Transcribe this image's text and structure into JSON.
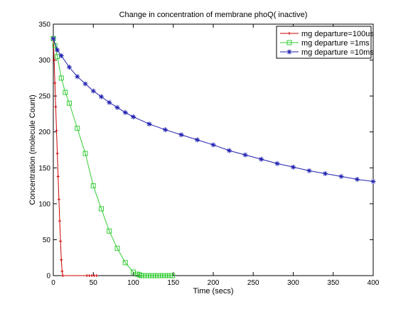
{
  "chart_data": {
    "type": "line",
    "title": "Change in concentration of membrane phoQ( inactive)",
    "xlabel": "Time (secs)",
    "ylabel": "Concentration (molecule Count)",
    "xlim": [
      0,
      400
    ],
    "ylim": [
      0,
      350
    ],
    "xticks": [
      0,
      50,
      100,
      150,
      200,
      250,
      300,
      350,
      400
    ],
    "yticks": [
      0,
      50,
      100,
      150,
      200,
      250,
      300,
      350
    ],
    "grid": false,
    "legend_position": "top-right",
    "series": [
      {
        "name": "mg departure=100us",
        "color": "#cc0000",
        "marker": "plus",
        "x": [
          0,
          1,
          2,
          3,
          4,
          5,
          6,
          7,
          8,
          9,
          10,
          11,
          12,
          42,
          45,
          48,
          51,
          54
        ],
        "y": [
          330,
          300,
          268,
          235,
          202,
          170,
          138,
          106,
          76,
          48,
          22,
          6,
          0,
          0,
          0,
          0,
          0,
          0
        ]
      },
      {
        "name": "mg departure =1ms",
        "color": "#33cc33",
        "marker": "square",
        "x": [
          0,
          2,
          5,
          10,
          15,
          20,
          30,
          40,
          50,
          60,
          70,
          80,
          90,
          100,
          105,
          108,
          110,
          113,
          116,
          119,
          122,
          125,
          128,
          131,
          134,
          137,
          140,
          143,
          146,
          149
        ],
        "y": [
          330,
          320,
          305,
          275,
          255,
          240,
          205,
          170,
          125,
          93,
          62,
          38,
          18,
          5,
          2,
          1,
          0,
          0,
          0,
          0,
          0,
          0,
          0,
          0,
          0,
          0,
          0,
          0,
          0,
          0
        ]
      },
      {
        "name": "mg departure =10ms",
        "color": "#1f1fb0",
        "marker": "star",
        "x": [
          0,
          5,
          10,
          20,
          30,
          40,
          50,
          60,
          70,
          80,
          90,
          100,
          120,
          140,
          160,
          180,
          200,
          220,
          240,
          260,
          280,
          300,
          320,
          340,
          360,
          380,
          400
        ],
        "y": [
          330,
          314,
          306,
          290,
          277,
          267,
          257,
          249,
          241,
          234,
          227,
          221,
          211,
          203,
          196,
          189,
          182,
          174,
          168,
          162,
          156,
          151,
          146,
          142,
          138,
          134,
          131
        ]
      }
    ]
  }
}
